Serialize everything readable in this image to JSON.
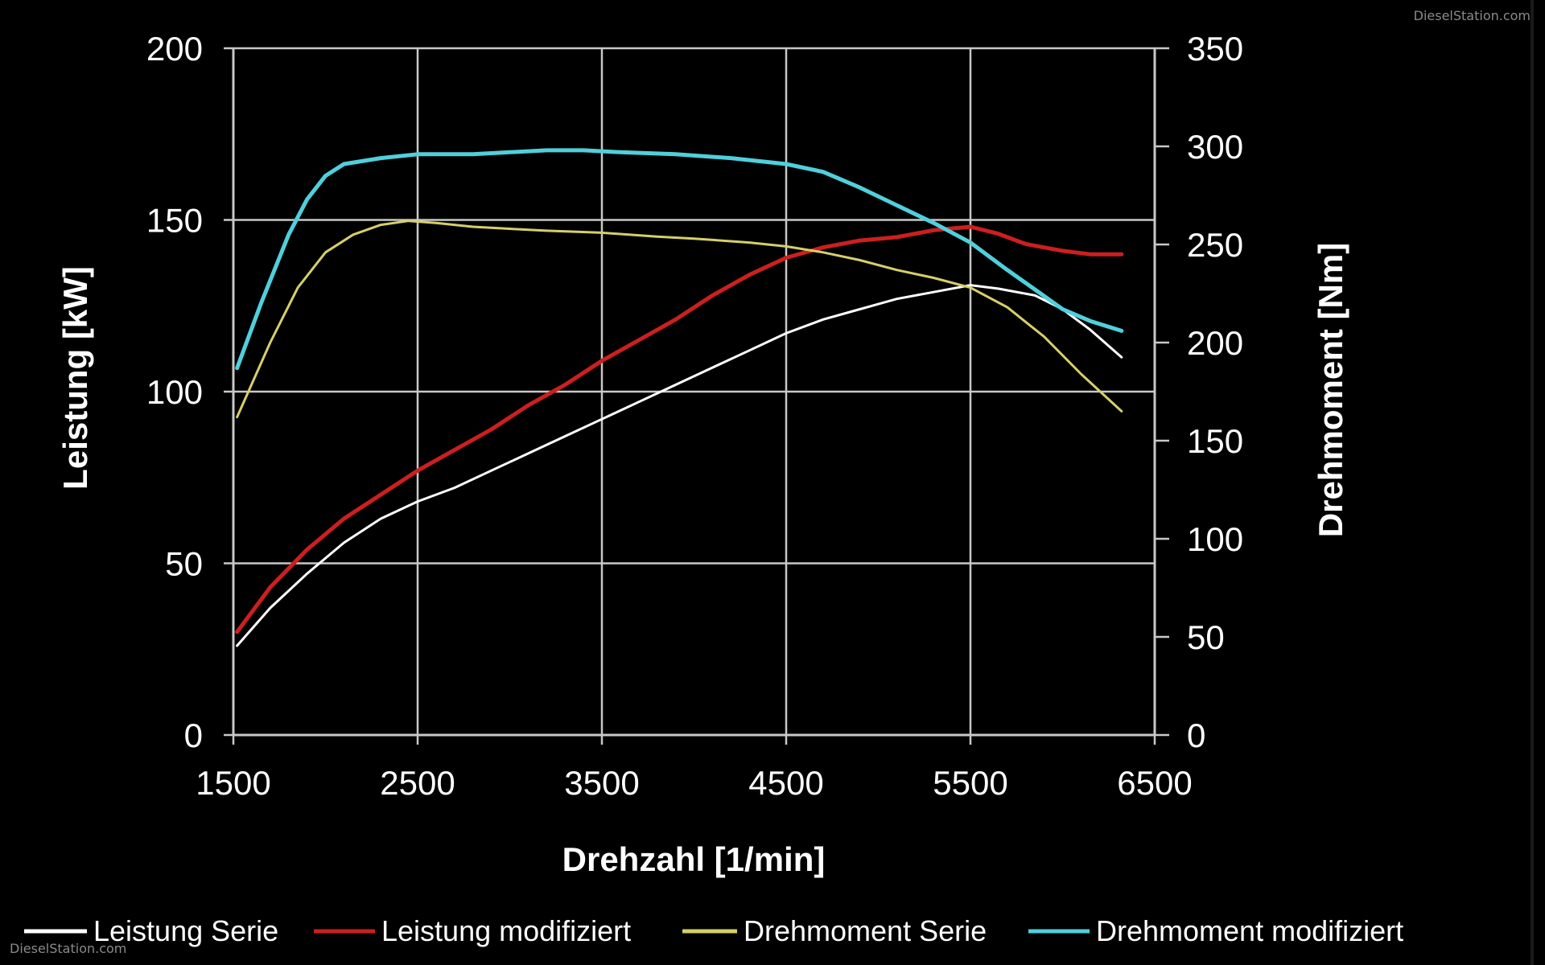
{
  "watermarks": {
    "top": "DieselStation.com",
    "bottom": "DieselStation.com"
  },
  "colors": {
    "background": "#000000",
    "grid": "#c8c8c8",
    "text": "#ffffff",
    "leistung_serie": "#ffffff",
    "leistung_modifiziert": "#cc1f1f",
    "drehmoment_serie": "#d6cf6a",
    "drehmoment_modifiziert": "#4fd0dc"
  },
  "chart_data": {
    "type": "line",
    "title": "",
    "xlabel": "Drehzahl [1/min]",
    "ylabel": "Leistung [kW]",
    "y2label": "Drehmoment [Nm]",
    "xlim": [
      1500,
      6500
    ],
    "ylim": [
      0,
      200
    ],
    "y2lim": [
      0,
      350
    ],
    "xticks": [
      1500,
      2500,
      3500,
      4500,
      5500,
      6500
    ],
    "yticks": [
      0,
      50,
      100,
      150,
      200
    ],
    "y2ticks": [
      0,
      50,
      100,
      150,
      200,
      250,
      300,
      350
    ],
    "grid": true,
    "legend_position": "bottom",
    "series": [
      {
        "name": "Leistung Serie",
        "axis": "left",
        "color": "#ffffff",
        "x": [
          1520,
          1700,
          1900,
          2100,
          2300,
          2500,
          2700,
          2900,
          3100,
          3300,
          3500,
          3700,
          3900,
          4100,
          4300,
          4500,
          4700,
          4900,
          5100,
          5300,
          5500,
          5650,
          5850,
          6000,
          6150,
          6320
        ],
        "y": [
          26,
          37,
          47,
          56,
          63,
          68,
          72,
          77,
          82,
          87,
          92,
          97,
          102,
          107,
          112,
          117,
          121,
          124,
          127,
          129,
          131,
          130,
          128,
          124,
          118,
          110
        ]
      },
      {
        "name": "Leistung modifiziert",
        "axis": "left",
        "color": "#cc1f1f",
        "x": [
          1520,
          1700,
          1900,
          2100,
          2300,
          2500,
          2700,
          2900,
          3100,
          3300,
          3500,
          3700,
          3900,
          4100,
          4300,
          4500,
          4700,
          4900,
          5100,
          5300,
          5500,
          5650,
          5800,
          6000,
          6150,
          6320
        ],
        "y": [
          30,
          43,
          54,
          63,
          70,
          77,
          83,
          89,
          96,
          102,
          109,
          115,
          121,
          128,
          134,
          139,
          142,
          144,
          145,
          147,
          148,
          146,
          143,
          141,
          140,
          140
        ]
      },
      {
        "name": "Drehmoment Serie",
        "axis": "right",
        "color": "#d6cf6a",
        "x": [
          1520,
          1700,
          1850,
          2000,
          2150,
          2300,
          2450,
          2600,
          2800,
          3000,
          3200,
          3500,
          3800,
          4000,
          4300,
          4500,
          4700,
          4900,
          5100,
          5300,
          5500,
          5700,
          5900,
          6100,
          6320
        ],
        "y": [
          162,
          200,
          228,
          246,
          255,
          260,
          262,
          261,
          259,
          258,
          257,
          256,
          254,
          253,
          251,
          249,
          246,
          242,
          237,
          233,
          228,
          218,
          203,
          184,
          165
        ]
      },
      {
        "name": "Drehmoment modifiziert",
        "axis": "right",
        "color": "#4fd0dc",
        "x": [
          1520,
          1650,
          1800,
          1900,
          2000,
          2100,
          2300,
          2500,
          2800,
          3000,
          3200,
          3400,
          3600,
          3900,
          4200,
          4500,
          4700,
          4900,
          5100,
          5300,
          5500,
          5700,
          5850,
          6000,
          6150,
          6320
        ],
        "y": [
          187,
          220,
          255,
          273,
          285,
          291,
          294,
          296,
          296,
          297,
          298,
          298,
          297,
          296,
          294,
          291,
          287,
          279,
          270,
          261,
          251,
          237,
          227,
          217,
          211,
          206
        ]
      }
    ]
  }
}
